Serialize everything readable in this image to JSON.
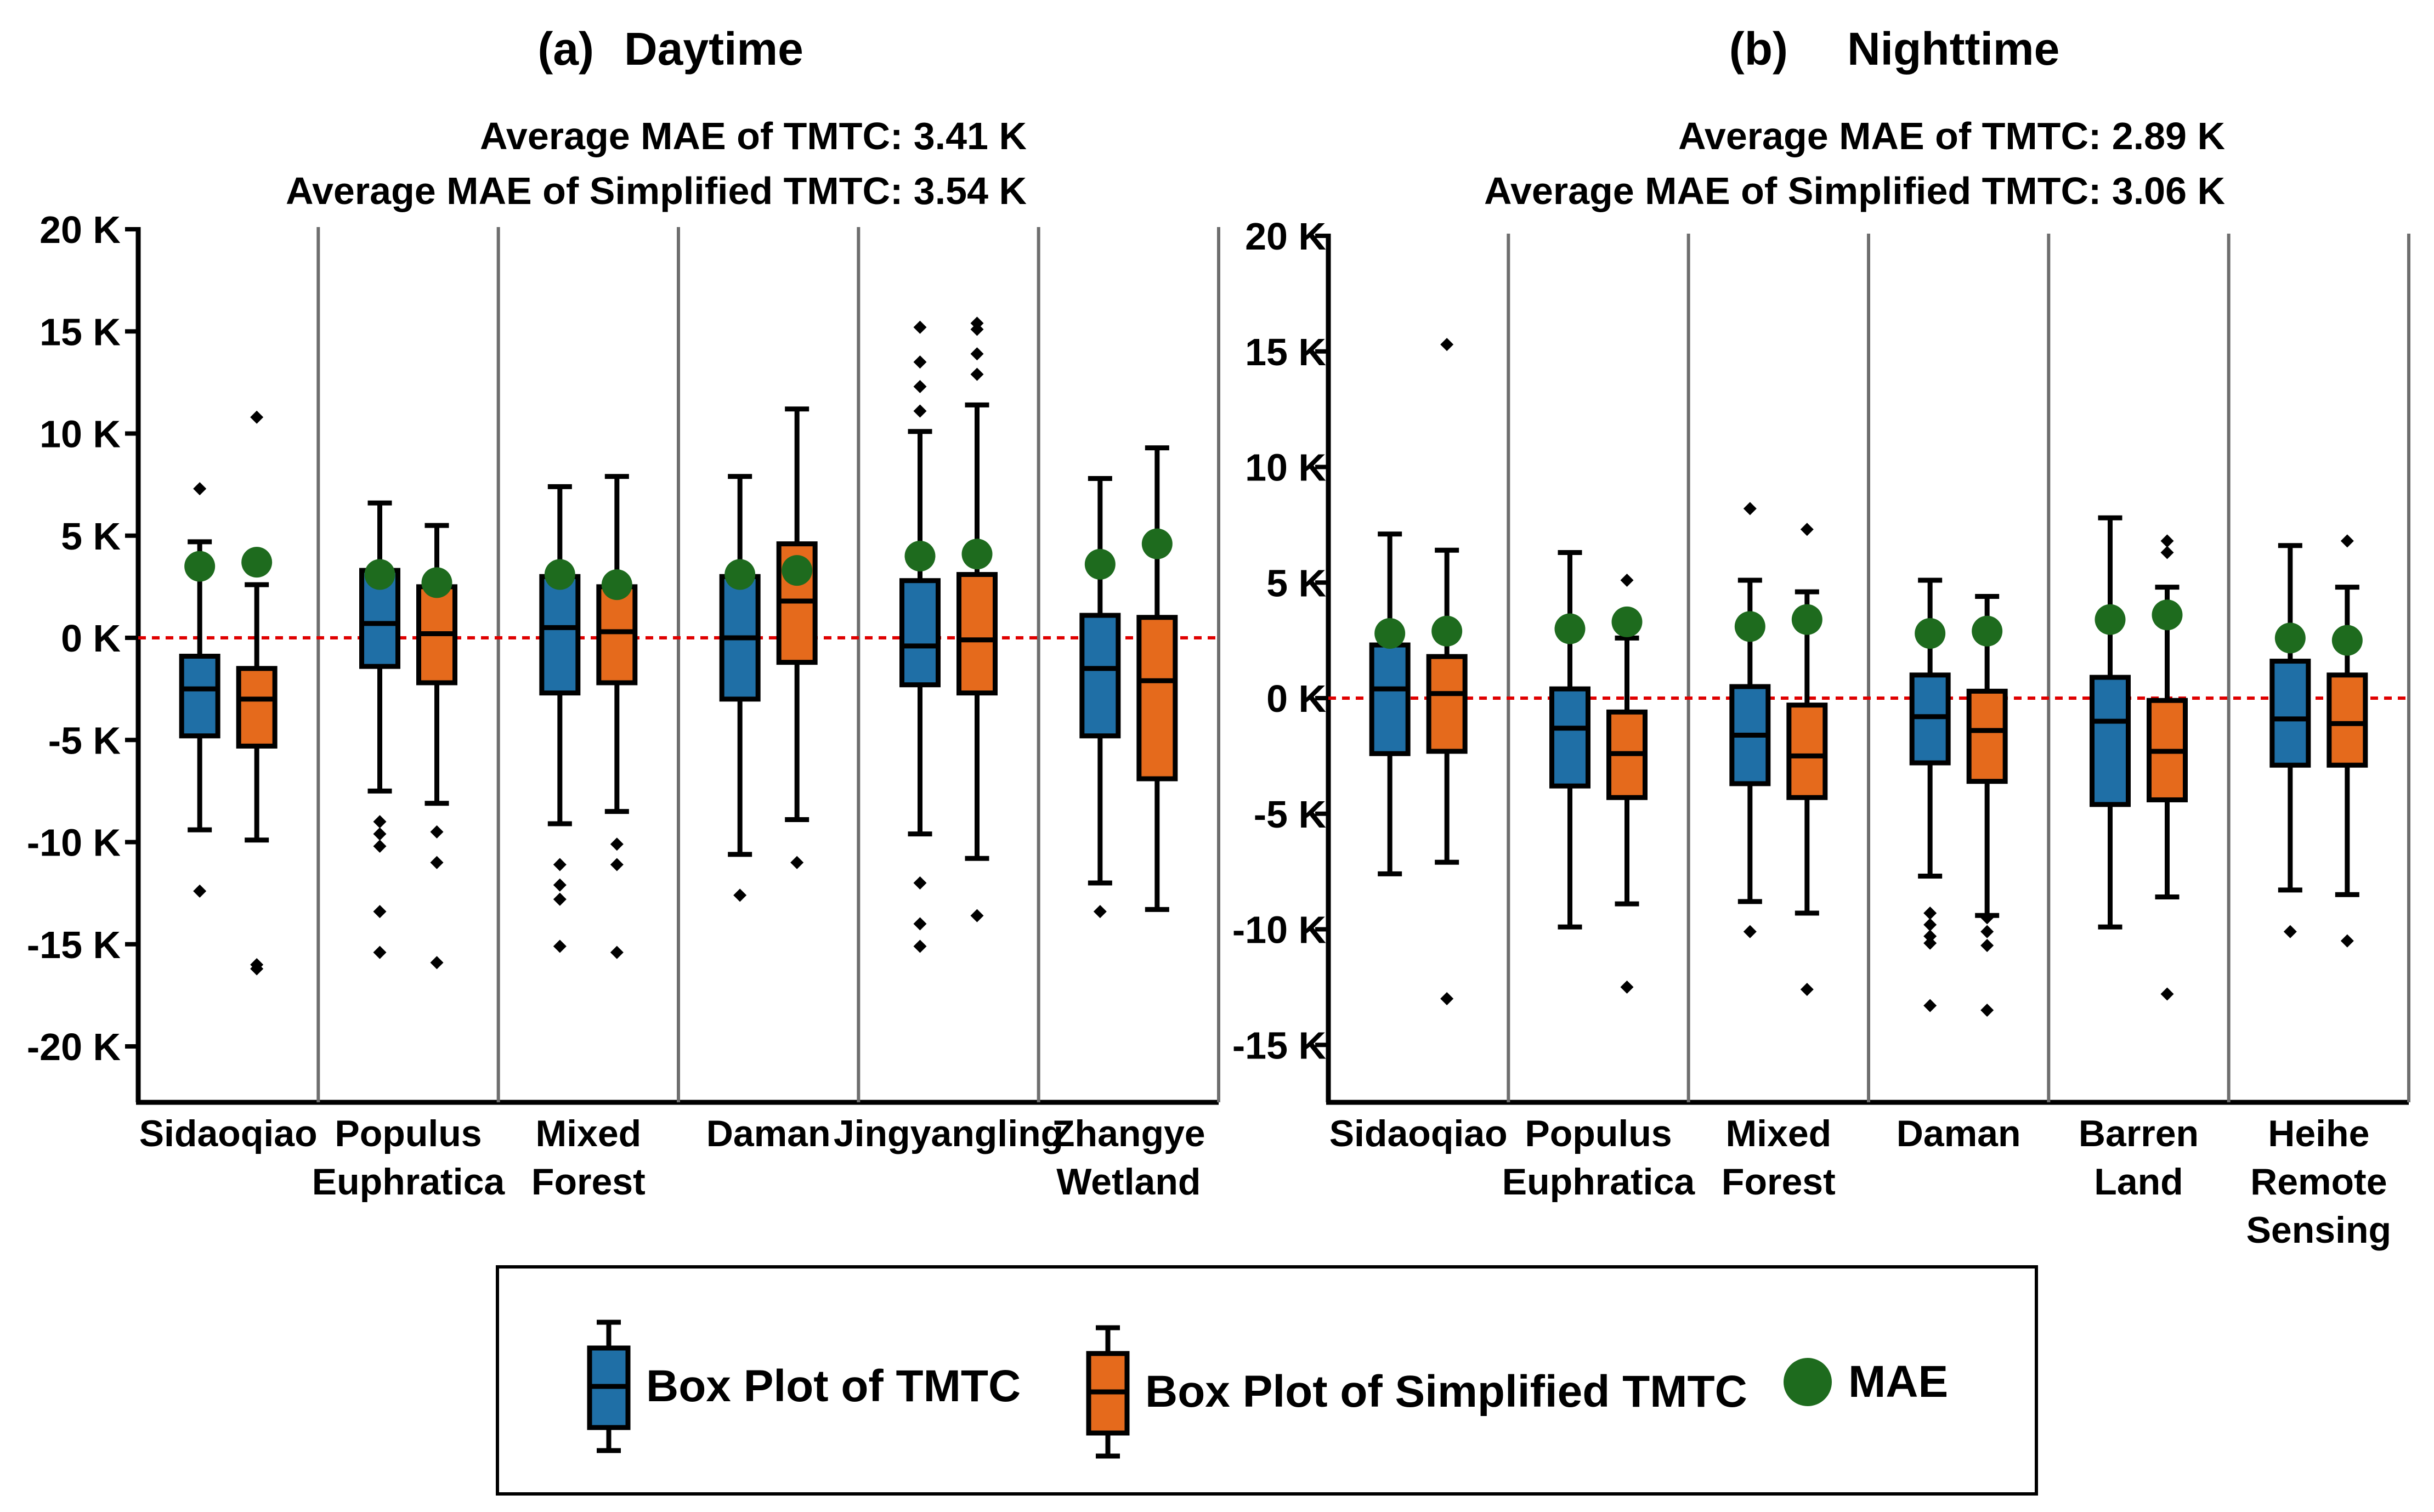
{
  "colors": {
    "tmtc": "#1f6fa6",
    "simplified": "#e56a1c",
    "mae": "#1e6b1e",
    "zero_line": "#e00000",
    "separator": "#6e6e6e"
  },
  "legend": {
    "tmtc_label": "Box Plot of TMTC",
    "simplified_label": "Box Plot of Simplified TMTC",
    "mae_label": "MAE"
  },
  "chart_data": [
    {
      "type": "boxplot",
      "panel_label": "(a)",
      "title": "Daytime",
      "annotation_1": "Average MAE of TMTC: 3.41 K",
      "annotation_2": "Average MAE of Simplified TMTC: 3.54 K",
      "ylim": [
        -21,
        20
      ],
      "yticks": [
        20,
        15,
        10,
        5,
        0,
        -5,
        -10,
        -15,
        -20
      ],
      "ytick_labels": [
        "20 K",
        "15 K",
        "10 K",
        "5 K",
        "0 K",
        "-5 K",
        "-10 K",
        "-15 K",
        "-20 K"
      ],
      "zero_line": 0,
      "categories": [
        {
          "label": [
            "Sidaoqiao"
          ],
          "tmtc": {
            "whislo": -9.4,
            "q1": -4.8,
            "med": -2.5,
            "q3": -0.9,
            "whishi": 4.7,
            "fliers": [
              7.3,
              -12.4
            ],
            "mae": 3.5
          },
          "simplified": {
            "whislo": -9.9,
            "q1": -5.3,
            "med": -3.0,
            "q3": -1.5,
            "whishi": 2.6,
            "fliers": [
              10.8,
              -16.0,
              -16.2
            ],
            "mae": 3.7
          }
        },
        {
          "label": [
            "Populus",
            "Euphratica"
          ],
          "tmtc": {
            "whislo": -7.5,
            "q1": -1.4,
            "med": 0.7,
            "q3": 3.3,
            "whishi": 6.6,
            "fliers": [
              -9.0,
              -9.6,
              -10.2,
              -13.4,
              -15.4
            ],
            "mae": 3.1
          },
          "simplified": {
            "whislo": -8.1,
            "q1": -2.2,
            "med": 0.2,
            "q3": 2.5,
            "whishi": 5.5,
            "fliers": [
              -9.5,
              -11.0,
              -15.9
            ],
            "mae": 2.7
          }
        },
        {
          "label": [
            "Mixed",
            "Forest"
          ],
          "tmtc": {
            "whislo": -9.1,
            "q1": -2.7,
            "med": 0.5,
            "q3": 3.0,
            "whishi": 7.4,
            "fliers": [
              -11.1,
              -12.1,
              -12.8,
              -15.1
            ],
            "mae": 3.1
          },
          "simplified": {
            "whislo": -8.5,
            "q1": -2.2,
            "med": 0.3,
            "q3": 2.5,
            "whishi": 7.9,
            "fliers": [
              -10.1,
              -11.1,
              -15.4
            ],
            "mae": 2.6
          }
        },
        {
          "label": [
            "Daman"
          ],
          "tmtc": {
            "whislo": -10.6,
            "q1": -3.0,
            "med": 0.0,
            "q3": 3.0,
            "whishi": 7.9,
            "fliers": [
              -12.6
            ],
            "mae": 3.1
          },
          "simplified": {
            "whislo": -8.9,
            "q1": -1.2,
            "med": 1.8,
            "q3": 4.6,
            "whishi": 11.2,
            "fliers": [
              -11.0
            ],
            "mae": 3.3
          }
        },
        {
          "label": [
            "Jingyangling"
          ],
          "tmtc": {
            "whislo": -9.6,
            "q1": -2.3,
            "med": -0.4,
            "q3": 2.8,
            "whishi": 10.1,
            "fliers": [
              15.2,
              13.5,
              12.3,
              11.1,
              -12.0,
              -14.0,
              -15.1
            ],
            "mae": 4.0
          },
          "simplified": {
            "whislo": -10.8,
            "q1": -2.7,
            "med": -0.1,
            "q3": 3.1,
            "whishi": 11.4,
            "fliers": [
              15.4,
              15.1,
              13.9,
              12.9,
              -13.6
            ],
            "mae": 4.1
          }
        },
        {
          "label": [
            "Zhangye",
            "Wetland"
          ],
          "tmtc": {
            "whislo": -12.0,
            "q1": -4.8,
            "med": -1.5,
            "q3": 1.1,
            "whishi": 7.8,
            "fliers": [
              -13.4
            ],
            "mae": 3.6
          },
          "simplified": {
            "whislo": -13.3,
            "q1": -6.9,
            "med": -2.1,
            "q3": 1.0,
            "whishi": 9.3,
            "fliers": [],
            "mae": 4.6
          }
        }
      ]
    },
    {
      "type": "boxplot",
      "panel_label": "(b)",
      "title": "Nighttime",
      "annotation_1": "Average MAE of TMTC: 2.89 K",
      "annotation_2": "Average MAE of Simplified TMTC: 3.06 K",
      "ylim": [
        -17.5,
        20
      ],
      "yticks": [
        20,
        15,
        10,
        5,
        0,
        -5,
        -10,
        -15
      ],
      "ytick_labels": [
        "20 K",
        "15 K",
        "10 K",
        "5 K",
        "0 K",
        "-5 K",
        "-10 K",
        "-15 K"
      ],
      "zero_line": 0,
      "categories": [
        {
          "label": [
            "Sidaoqiao"
          ],
          "tmtc": {
            "whislo": -7.6,
            "q1": -2.4,
            "med": 0.4,
            "q3": 2.3,
            "whishi": 7.1,
            "fliers": [],
            "mae": 2.8
          },
          "simplified": {
            "whislo": -7.1,
            "q1": -2.3,
            "med": 0.2,
            "q3": 1.8,
            "whishi": 6.4,
            "fliers": [
              15.3,
              -13.0
            ],
            "mae": 2.9
          }
        },
        {
          "label": [
            "Populus",
            "Euphratica"
          ],
          "tmtc": {
            "whislo": -9.9,
            "q1": -3.8,
            "med": -1.3,
            "q3": 0.4,
            "whishi": 6.3,
            "fliers": [],
            "mae": 3.0
          },
          "simplified": {
            "whislo": -8.9,
            "q1": -4.3,
            "med": -2.4,
            "q3": -0.6,
            "whishi": 2.6,
            "fliers": [
              5.1,
              -12.5
            ],
            "mae": 3.3
          }
        },
        {
          "label": [
            "Mixed",
            "Forest"
          ],
          "tmtc": {
            "whislo": -8.8,
            "q1": -3.7,
            "med": -1.6,
            "q3": 0.5,
            "whishi": 5.1,
            "fliers": [
              8.2,
              -10.1
            ],
            "mae": 3.1
          },
          "simplified": {
            "whislo": -9.3,
            "q1": -4.3,
            "med": -2.5,
            "q3": -0.3,
            "whishi": 4.6,
            "fliers": [
              7.3,
              -12.6
            ],
            "mae": 3.4
          }
        },
        {
          "label": [
            "Daman"
          ],
          "tmtc": {
            "whislo": -7.7,
            "q1": -2.8,
            "med": -0.8,
            "q3": 1.0,
            "whishi": 5.1,
            "fliers": [
              -9.3,
              -9.8,
              -10.3,
              -10.6,
              -13.3
            ],
            "mae": 2.8
          },
          "simplified": {
            "whislo": -9.4,
            "q1": -3.6,
            "med": -1.4,
            "q3": 0.3,
            "whishi": 4.4,
            "fliers": [
              -9.5,
              -10.1,
              -10.7,
              -13.5
            ],
            "mae": 2.9
          }
        },
        {
          "label": [
            "Barren",
            "Land"
          ],
          "tmtc": {
            "whislo": -9.9,
            "q1": -4.6,
            "med": -1.0,
            "q3": 0.9,
            "whishi": 7.8,
            "fliers": [],
            "mae": 3.4
          },
          "simplified": {
            "whislo": -8.6,
            "q1": -4.4,
            "med": -2.3,
            "q3": -0.1,
            "whishi": 4.8,
            "fliers": [
              6.8,
              6.3,
              -12.8
            ],
            "mae": 3.6
          }
        },
        {
          "label": [
            "Heihe",
            "Remote",
            "Sensing"
          ],
          "tmtc": {
            "whislo": -8.3,
            "q1": -2.9,
            "med": -0.9,
            "q3": 1.6,
            "whishi": 6.6,
            "fliers": [
              -10.1
            ],
            "mae": 2.6
          },
          "simplified": {
            "whislo": -8.5,
            "q1": -2.9,
            "med": -1.1,
            "q3": 1.0,
            "whishi": 4.8,
            "fliers": [
              6.8,
              -10.5
            ],
            "mae": 2.5
          }
        }
      ]
    }
  ]
}
